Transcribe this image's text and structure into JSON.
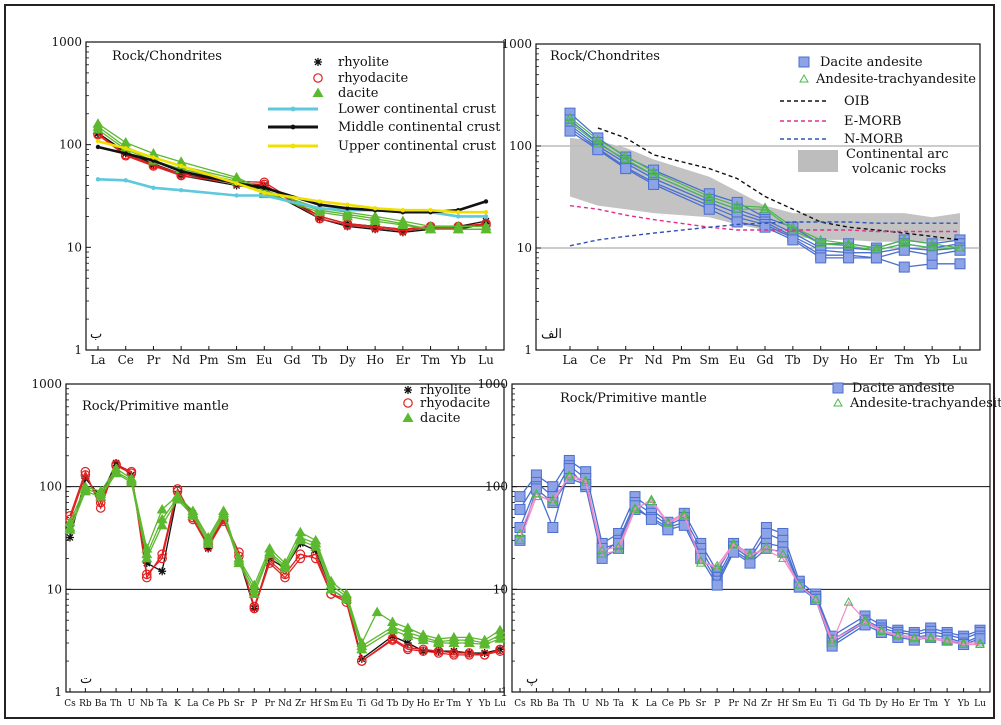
{
  "chart_data": [
    {
      "id": "a",
      "type": "line",
      "title": "Rock/Chondrites",
      "panel_label": "ب",
      "yscale": "log",
      "ylim": [
        1,
        1000
      ],
      "yticks": [
        "1",
        "10",
        "100",
        "1000"
      ],
      "grid": false,
      "legend": "top-right",
      "categories": [
        "La",
        "Ce",
        "Pr",
        "Nd",
        "Pm",
        "Sm",
        "Eu",
        "Gd",
        "Tb",
        "Dy",
        "Ho",
        "Er",
        "Tm",
        "Yb",
        "Lu"
      ],
      "series": [
        {
          "name": "rhyolite",
          "color": "#111111",
          "marker": "asterisk",
          "values": [
            [
              130,
              85,
              65,
              52,
              null,
              42,
              40,
              null,
              20,
              17,
              16,
              15,
              16,
              16,
              18
            ],
            [
              128,
              82,
              63,
              50,
              null,
              40,
              37,
              null,
              19,
              16,
              15,
              14,
              15,
              15,
              17
            ]
          ]
        },
        {
          "name": "rhyodacite",
          "color": "#e02020",
          "marker": "circle-open",
          "values": [
            [
              128,
              80,
              64,
              52,
              null,
              44,
              43,
              null,
              20,
              17,
              16,
              15,
              16,
              16,
              17
            ],
            [
              125,
              78,
              62,
              50,
              null,
              42,
              41,
              null,
              19,
              16.5,
              15.5,
              14.5,
              15.5,
              15.5,
              16.5
            ]
          ]
        },
        {
          "name": "dacite",
          "color": "#5cb82e",
          "marker": "triangle-filled",
          "values": [
            [
              160,
              105,
              82,
              68,
              null,
              48,
              36,
              null,
              24,
              22,
              20,
              18,
              16,
              16,
              16
            ],
            [
              150,
              95,
              74,
              62,
              null,
              46,
              34,
              null,
              23,
              21,
              19,
              17,
              15,
              15,
              15
            ],
            [
              140,
              90,
              70,
              58,
              null,
              44,
              33,
              null,
              22,
              20,
              18,
              16.5,
              15,
              15,
              15
            ]
          ]
        },
        {
          "name": "Lower continental crust",
          "color": "#5ec8dc",
          "marker": "line",
          "values": [
            46,
            45,
            38,
            36,
            null,
            32,
            32,
            null,
            24,
            23,
            23,
            22,
            22,
            20,
            20
          ]
        },
        {
          "name": "Middle continental crust",
          "color": "#111111",
          "marker": "line",
          "values": [
            95,
            82,
            70,
            55,
            null,
            42,
            38,
            null,
            26,
            24,
            23,
            22,
            22,
            23,
            28
          ]
        },
        {
          "name": "Upper continental crust",
          "color": "#f0e000",
          "marker": "line",
          "values": [
            108,
            92,
            75,
            62,
            null,
            42,
            34,
            null,
            28,
            26,
            24,
            23,
            23,
            22,
            22
          ]
        }
      ]
    },
    {
      "id": "b",
      "type": "line",
      "title": "Rock/Chondrites",
      "panel_label": "الف",
      "yscale": "log",
      "ylim": [
        1,
        1000
      ],
      "yticks": [
        "1",
        "10",
        "100",
        "1000"
      ],
      "grid": true,
      "legend": "top-right",
      "categories": [
        "La",
        "Ce",
        "Pr",
        "Nd",
        "Pm",
        "Sm",
        "Eu",
        "Gd",
        "Tb",
        "Dy",
        "Ho",
        "Er",
        "Tm",
        "Yb",
        "Lu"
      ],
      "series": [
        {
          "name": "Dacite andesite",
          "color": "#4a6fd0",
          "marker": "square-filled",
          "values": [
            [
              210,
              120,
              78,
              58,
              null,
              34,
              28,
              20,
              16,
              11,
              11,
              10,
              12,
              11,
              12
            ],
            [
              180,
              108,
              72,
              52,
              null,
              30,
              24,
              19,
              14,
              10,
              10,
              9.5,
              11,
              10,
              11
            ],
            [
              160,
              100,
              68,
              48,
              null,
              28,
              22,
              18,
              13,
              9.5,
              9,
              9,
              10,
              9.5,
              10
            ],
            [
              150,
              95,
              62,
              44,
              null,
              26,
              20,
              17,
              12.5,
              8.5,
              8.5,
              8,
              6.5,
              7,
              7
            ],
            [
              140,
              92,
              60,
              42,
              null,
              24,
              18,
              16,
              12,
              8,
              8,
              8,
              9.5,
              8.5,
              9.5
            ]
          ]
        },
        {
          "name": "Andesite-trachyandesite",
          "color": "#4cb84c",
          "marker": "triangle-open",
          "values": [
            [
              190,
              115,
              80,
              56,
              null,
              32,
              26,
              25,
              16,
              12,
              11,
              10,
              12,
              11,
              10
            ],
            [
              170,
              105,
              74,
              52,
              null,
              30,
              24,
              24,
              15,
              11,
              10.5,
              9.5,
              11,
              10,
              10
            ]
          ]
        },
        {
          "name": "OIB",
          "color": "#111111",
          "marker": "dash",
          "values": [
            null,
            150,
            120,
            82,
            null,
            60,
            48,
            32,
            24,
            18,
            16,
            15,
            14,
            13,
            12
          ]
        },
        {
          "name": "E-MORB",
          "color": "#e0308a",
          "marker": "dash",
          "values": [
            26,
            24,
            21,
            19,
            null,
            16,
            15,
            15,
            15,
            15,
            15,
            14.5,
            14.5,
            14.5,
            14.5
          ]
        },
        {
          "name": "N-MORB",
          "color": "#3050b8",
          "marker": "dash",
          "values": [
            10.5,
            12,
            13,
            14,
            null,
            16,
            17,
            17.5,
            18,
            18,
            18,
            17.5,
            17.5,
            17.5,
            17.5
          ]
        }
      ],
      "band": {
        "name": "Continental arc volcanic rocks",
        "color": "#bdbdbd",
        "upper": [
          120,
          112,
          96,
          74,
          null,
          50,
          36,
          26,
          22,
          22,
          22,
          22,
          22,
          20,
          22
        ],
        "lower": [
          32,
          26,
          24,
          22,
          null,
          20,
          17,
          15,
          13,
          12,
          12,
          11.5,
          11.5,
          11.5,
          12
        ]
      }
    },
    {
      "id": "c",
      "type": "line",
      "title": "Rock/Primitive mantle",
      "panel_label": "ت",
      "yscale": "log",
      "ylim": [
        1,
        1000
      ],
      "yticks": [
        "1",
        "10",
        "100",
        "1000"
      ],
      "grid": true,
      "legend": "top-right",
      "categories": [
        "Cs",
        "Rb",
        "Ba",
        "Th",
        "U",
        "Nb",
        "Ta",
        "K",
        "La",
        "Ce",
        "Pb",
        "Sr",
        "P",
        "Pr",
        "Nd",
        "Zr",
        "Hf",
        "Sm",
        "Eu",
        "Ti",
        "Gd",
        "Tb",
        "Dy",
        "Ho",
        "Er",
        "Tm",
        "Y",
        "Yb",
        "Lu"
      ],
      "series": [
        {
          "name": "rhyolite",
          "color": "#111111",
          "marker": "asterisk",
          "values": [
            [
              32,
              120,
              80,
              170,
              130,
              18,
              15,
              85,
              55,
              25,
              50,
              20,
              6.5,
              20,
              16,
              28,
              24,
              10,
              8,
              2.1,
              null,
              3.5,
              3,
              2.5,
              2.5,
              2.5,
              2.4,
              2.4,
              2.6
            ]
          ]
        },
        {
          "name": "rhyodacite",
          "color": "#e02020",
          "marker": "circle-open",
          "values": [
            [
              52,
              140,
              62,
              165,
              140,
              13,
              22,
              95,
              50,
              28,
              48,
              23,
              6.5,
              18,
              13,
              20,
              22,
              9,
              8,
              2.0,
              null,
              3.3,
              2.7,
              2.6,
              2.5,
              2.4,
              2.4,
              2.3,
              2.6
            ],
            [
              48,
              130,
              70,
              160,
              135,
              14,
              20,
              90,
              48,
              26,
              46,
              21,
              6.8,
              19,
              14,
              22,
              20,
              9,
              7.5,
              2.0,
              null,
              3.2,
              2.6,
              2.5,
              2.4,
              2.3,
              2.3,
              2.3,
              2.5
            ]
          ]
        },
        {
          "name": "dacite",
          "color": "#5cb82e",
          "marker": "triangle-filled",
          "values": [
            [
              45,
              100,
              90,
              150,
              120,
              25,
              60,
              82,
              58,
              32,
              58,
              20,
              11,
              25,
              18,
              36,
              30,
              12,
              9,
              3.0,
              6.0,
              4.8,
              4.2,
              3.6,
              3.3,
              3.4,
              3.4,
              3.2,
              4.0
            ],
            [
              40,
              95,
              85,
              140,
              115,
              22,
              48,
              78,
              55,
              30,
              55,
              19,
              10,
              23,
              17,
              32,
              28,
              11,
              8.5,
              2.8,
              null,
              4.3,
              3.8,
              3.4,
              3.1,
              3.2,
              3.2,
              3.0,
              3.6
            ],
            [
              38,
              90,
              80,
              135,
              110,
              20,
              42,
              75,
              52,
              28,
              52,
              18,
              9,
              22,
              16,
              30,
              26,
              10,
              8,
              2.6,
              null,
              4.0,
              3.5,
              3.2,
              3.0,
              3.0,
              3.0,
              2.9,
              3.3
            ]
          ]
        }
      ]
    },
    {
      "id": "d",
      "type": "line",
      "title": "Rock/Primitive mantle",
      "panel_label": "پ",
      "yscale": "log",
      "ylim": [
        1,
        1000
      ],
      "yticks": [
        "1",
        "10",
        "100",
        "1000"
      ],
      "grid": true,
      "legend": "top-right",
      "categories": [
        "Cs",
        "Rb",
        "Ba",
        "Th",
        "U",
        "Nb",
        "Ta",
        "K",
        "La",
        "Ce",
        "Pb",
        "Sr",
        "P",
        "Pr",
        "Nd",
        "Zr",
        "Hf",
        "Sm",
        "Eu",
        "Ti",
        "Gd",
        "Tb",
        "Dy",
        "Ho",
        "Er",
        "Tm",
        "Y",
        "Yb",
        "Lu"
      ],
      "series": [
        {
          "name": "Dacite andesite",
          "color": "#4a6fd0",
          "marker": "square-filled",
          "values": [
            [
              80,
              130,
              100,
              180,
              140,
              28,
              35,
              80,
              60,
              45,
              55,
              28,
              15,
              28,
              22,
              40,
              35,
              12,
              9,
              3.5,
              null,
              5.5,
              4.5,
              4.0,
              3.8,
              4.2,
              3.8,
              3.5,
              4.0
            ],
            [
              60,
              110,
              80,
              160,
              120,
              22,
              30,
              70,
              55,
              42,
              50,
              25,
              13,
              26,
              20,
              35,
              30,
              11,
              8.5,
              3.2,
              null,
              5.0,
              4.2,
              3.8,
              3.6,
              3.9,
              3.6,
              3.3,
              3.8
            ],
            [
              40,
              100,
              40,
              150,
              100,
              20,
              25,
              60,
              50,
              40,
              45,
              22,
              12,
              24,
              19,
              28,
              26,
              11,
              8,
              3.0,
              null,
              4.8,
              4.0,
              3.6,
              3.4,
              3.6,
              3.4,
              3.0,
              3.5
            ],
            [
              30,
              95,
              70,
              120,
              105,
              25,
              28,
              65,
              48,
              38,
              42,
              20,
              11,
              23,
              18,
              25,
              23,
              10.5,
              8,
              2.8,
              null,
              4.5,
              3.8,
              3.4,
              3.2,
              3.4,
              3.2,
              2.9,
              3.3
            ]
          ]
        },
        {
          "name": "Andesite-trachyandesite",
          "color": "#4cb84c",
          "marker": "triangle-open",
          "values": [
            [
              30,
              80,
              75,
              125,
              110,
              22,
              24,
              60,
              75,
              45,
              55,
              18,
              17,
              28,
              22,
              24,
              20,
              11,
              8,
              3.0,
              7.5,
              5.0,
              4.0,
              3.6,
              3.4,
              3.4,
              3.2,
              3.0,
              3.0
            ],
            [
              35,
              85,
              70,
              130,
              115,
              24,
              26,
              62,
              72,
              44,
              52,
              19,
              16,
              27,
              21,
              26,
              22,
              11,
              8,
              3.2,
              null,
              4.8,
              3.9,
              3.5,
              3.3,
              3.3,
              3.1,
              2.9,
              2.9
            ]
          ]
        }
      ]
    }
  ]
}
